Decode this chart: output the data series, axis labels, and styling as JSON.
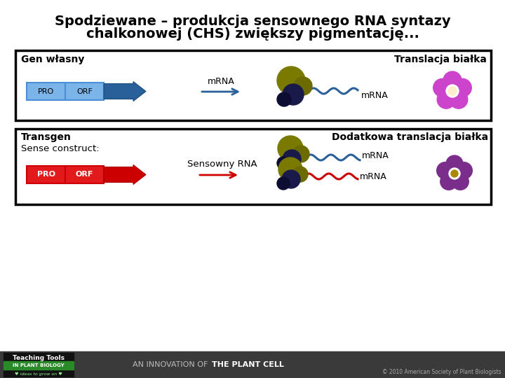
{
  "title_line1": "Spodziewane – produkcja sensownego RNA syntazy",
  "title_line2": "chalkonowej (CHS) zwiększy pigmentację...",
  "title_fontsize": 14,
  "bg_color": "#ffffff",
  "box1_label": "Gen własny",
  "box1_right_label": "Translacja białka",
  "box1_mrna_top": "mRNA",
  "box1_mrna_bottom": "mRNA",
  "box2_label": "Transgen",
  "box2_sublabel": "Sense construct:",
  "box2_right_label": "Dodatkowa translacja białka",
  "box2_center_label": "Sensowny RNA",
  "box2_mrna1": "mRNA",
  "box2_mrna2": "mRNA",
  "pro_blue": "#7ab4e8",
  "pro_blue_border": "#4a90d9",
  "pro_red": "#e31a1c",
  "pro_red_border": "#cc0000",
  "arrow_blue": "#2a6099",
  "arrow_red": "#cc0000",
  "mrna_arrow_blue": "#2a6099",
  "mrna_arrow_red": "#cc0000",
  "box_border": "#000000",
  "footer_bg": "#3a3a3a",
  "footer_copy": "© 2010 American Society of Plant Biologists",
  "flower_purple1": "#cc44cc",
  "flower_purple2": "#7b2d8b",
  "ribosome_olive": "#7a7a00",
  "ribosome_dark": "#1a1a4a",
  "wave_blue": "#2a6099",
  "wave_red": "#cc0000"
}
